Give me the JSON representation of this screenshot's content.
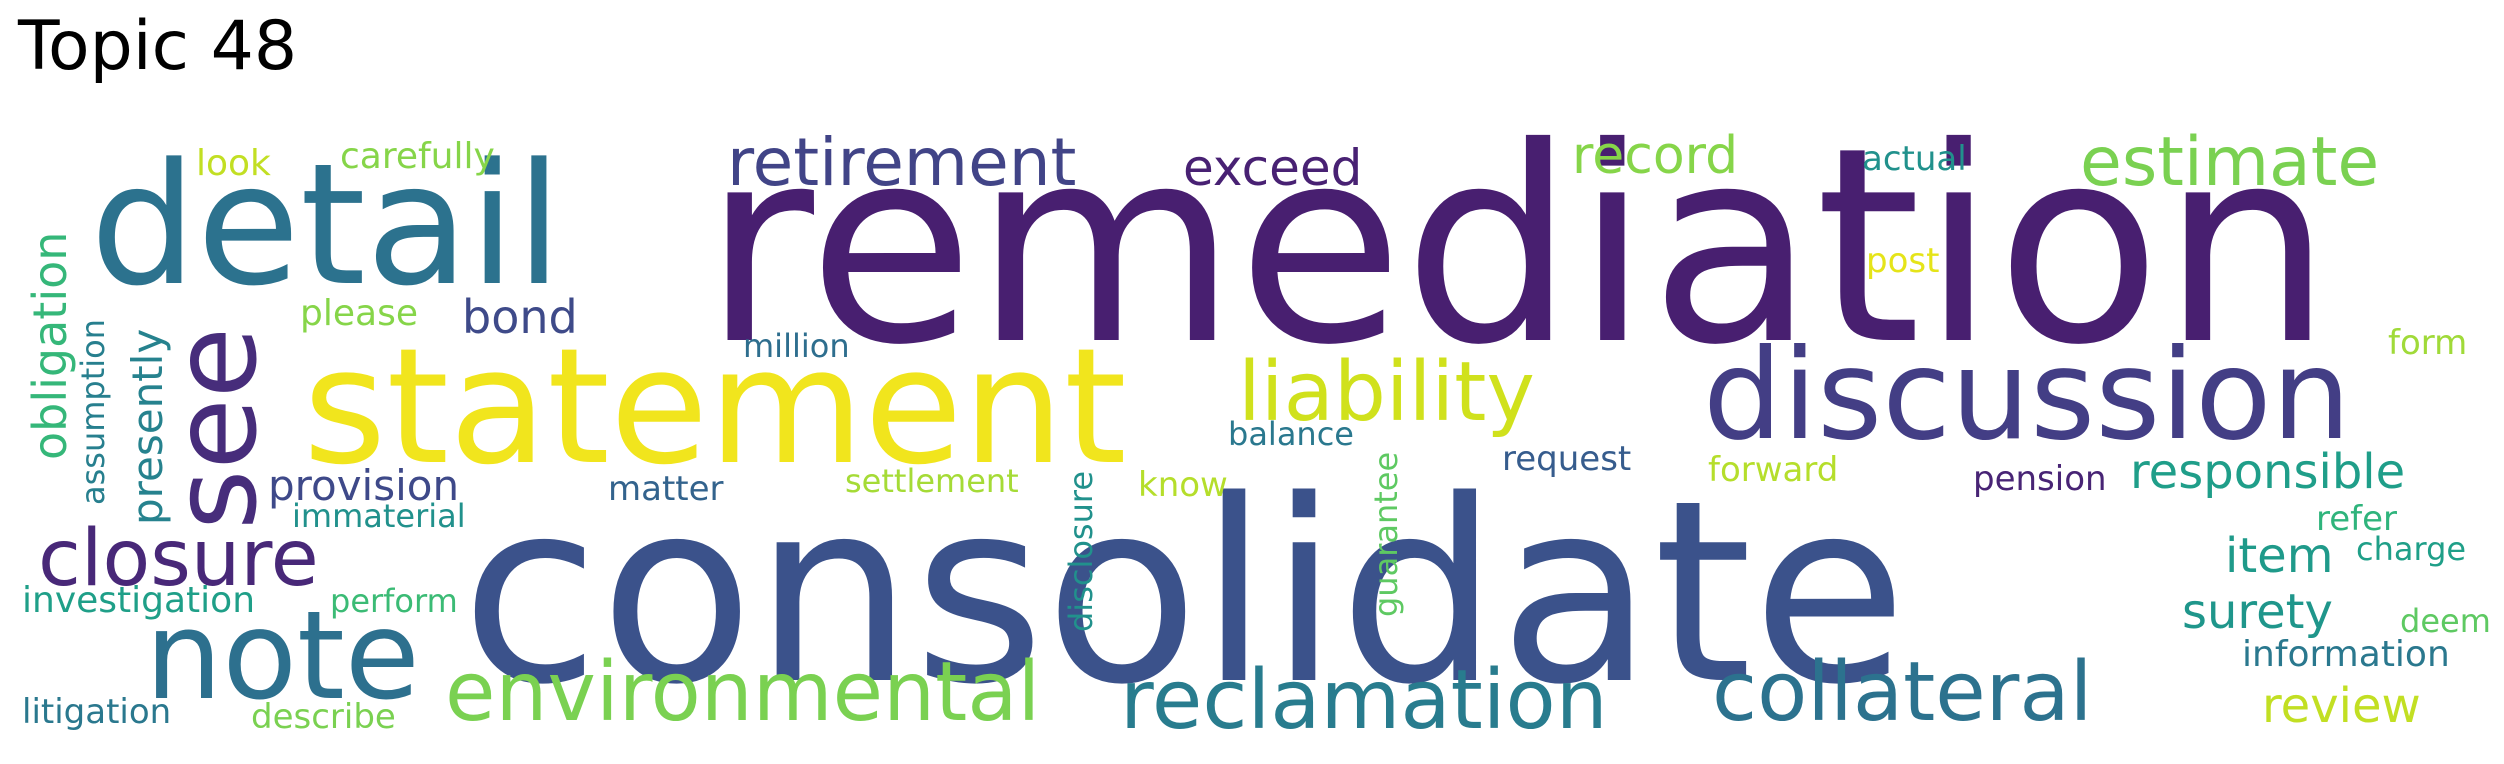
{
  "title": "Topic 48",
  "words": [
    {
      "text": "remediation",
      "color": "#481f70"
    },
    {
      "text": "consolidate",
      "color": "#3b528b"
    },
    {
      "text": "statement",
      "color": "#f1e51d"
    },
    {
      "text": "detail",
      "color": "#2c728e"
    },
    {
      "text": "discussion",
      "color": "#433e85"
    },
    {
      "text": "see",
      "color": "#472d7b"
    },
    {
      "text": "note",
      "color": "#2d708e"
    },
    {
      "text": "environmental",
      "color": "#7ad151"
    },
    {
      "text": "reclamation",
      "color": "#287c8e"
    },
    {
      "text": "collateral",
      "color": "#2c728e"
    },
    {
      "text": "liability",
      "color": "#d0e11c"
    },
    {
      "text": "retirement",
      "color": "#414487"
    },
    {
      "text": "estimate",
      "color": "#7ad151"
    },
    {
      "text": "closure",
      "color": "#482878"
    },
    {
      "text": "exceed",
      "color": "#482173"
    },
    {
      "text": "record",
      "color": "#86d549"
    },
    {
      "text": "responsible",
      "color": "#1f9e89"
    },
    {
      "text": "item",
      "color": "#1f9a8a"
    },
    {
      "text": "surety",
      "color": "#1f968b"
    },
    {
      "text": "review",
      "color": "#c2df23"
    },
    {
      "text": "obligation",
      "color": "#35b779"
    },
    {
      "text": "bond",
      "color": "#3e4a89"
    },
    {
      "text": "provision",
      "color": "#3e4989"
    },
    {
      "text": "presently",
      "color": "#26828e"
    },
    {
      "text": "information",
      "color": "#2a788e"
    },
    {
      "text": "investigation",
      "color": "#1f9f88"
    },
    {
      "text": "carefully",
      "color": "#86d549"
    },
    {
      "text": "please",
      "color": "#86d549"
    },
    {
      "text": "look",
      "color": "#c2df23"
    },
    {
      "text": "assumption",
      "color": "#277f8e"
    },
    {
      "text": "million",
      "color": "#2e6e8e"
    },
    {
      "text": "matter",
      "color": "#33638d"
    },
    {
      "text": "immaterial",
      "color": "#21918c"
    },
    {
      "text": "settlement",
      "color": "#a5db36"
    },
    {
      "text": "disclosure",
      "color": "#21918c"
    },
    {
      "text": "guarantee",
      "color": "#5ec962"
    },
    {
      "text": "know",
      "color": "#b5de2b"
    },
    {
      "text": "balance",
      "color": "#2a788e"
    },
    {
      "text": "request",
      "color": "#365c8d"
    },
    {
      "text": "forward",
      "color": "#b5de2b"
    },
    {
      "text": "pension",
      "color": "#482475"
    },
    {
      "text": "actual",
      "color": "#21918c"
    },
    {
      "text": "post",
      "color": "#e5e419"
    },
    {
      "text": "form",
      "color": "#a0da39"
    },
    {
      "text": "refer",
      "color": "#2fb47c"
    },
    {
      "text": "charge",
      "color": "#1f9f88"
    },
    {
      "text": "deem",
      "color": "#5ec962"
    },
    {
      "text": "perform",
      "color": "#3bbb75"
    },
    {
      "text": "litigation",
      "color": "#2a788e"
    },
    {
      "text": "describe",
      "color": "#7ad151"
    }
  ]
}
